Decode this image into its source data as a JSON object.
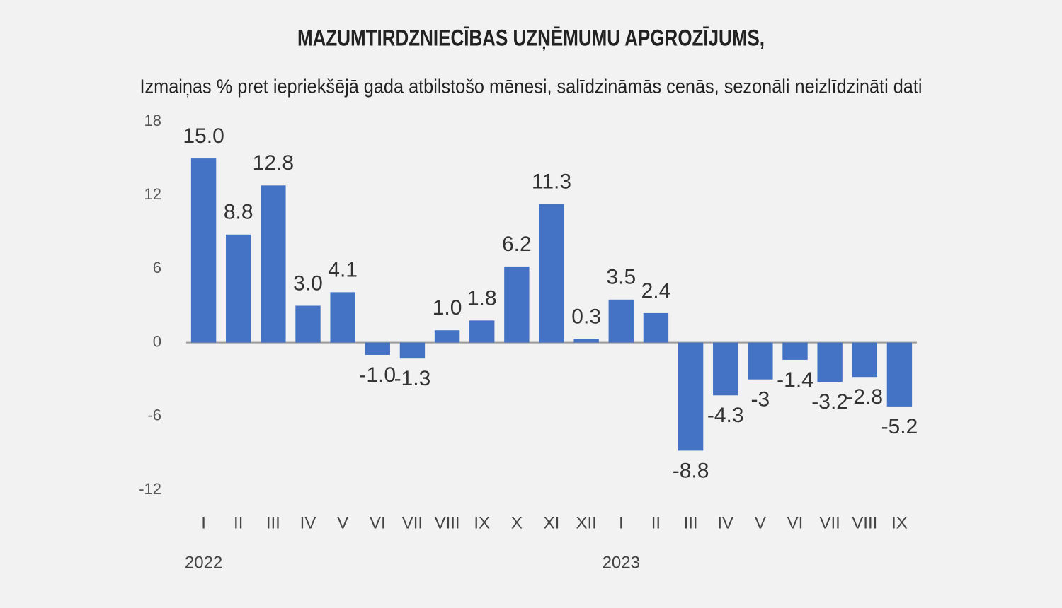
{
  "chart_data": {
    "type": "bar",
    "title": "MAZUMTIRDZNIECĪBAS UZŅĒMUMU APGROZĪJUMS,",
    "subtitle": "Izmaiņas % pret iepriekšējā gada atbilstošo mēnesi, salīdzināmās cenās, sezonāli neizlīdzināti dati",
    "categories": [
      "I",
      "II",
      "III",
      "IV",
      "V",
      "VI",
      "VII",
      "VIII",
      "IX",
      "X",
      "XI",
      "XII",
      "I",
      "II",
      "III",
      "IV",
      "V",
      "VI",
      "VII",
      "VIII",
      "IX"
    ],
    "year_labels": [
      "2022",
      "2023"
    ],
    "values": [
      15.0,
      8.8,
      12.8,
      3.0,
      4.1,
      -1.0,
      -1.3,
      1.0,
      1.8,
      6.2,
      11.3,
      0.3,
      3.5,
      2.4,
      -8.8,
      -4.3,
      -3,
      -1.4,
      -3.2,
      -2.8,
      -5.2
    ],
    "value_labels": [
      "15.0",
      "8.8",
      "12.8",
      "3.0",
      "4.1",
      "-1.0",
      "-1.3",
      "1.0",
      "1.8",
      "6.2",
      "11.3",
      "0.3",
      "3.5",
      "2.4",
      "-8.8",
      "-4.3",
      "-3",
      "-1.4",
      "-3.2",
      "-2.8",
      "-5.2"
    ],
    "color": "#4472c4",
    "ylim": [
      -12,
      18
    ],
    "yticks": [
      18,
      12,
      6,
      0,
      -6,
      -12
    ],
    "grid": false
  }
}
